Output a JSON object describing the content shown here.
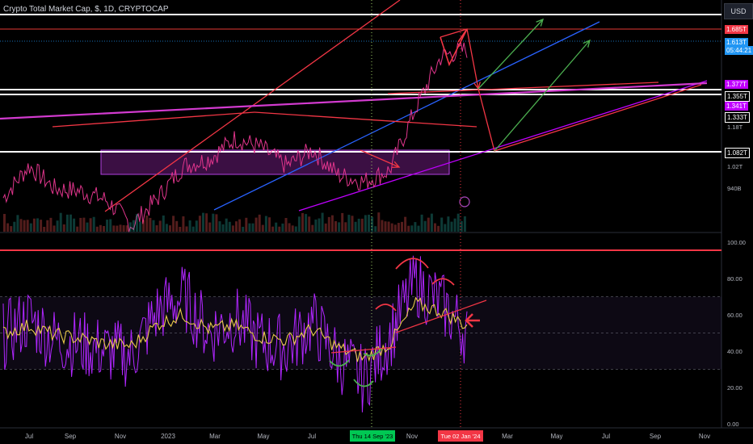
{
  "header": {
    "title": "Crypto Total Market Cap, $, 1D, CRYPTOCAP",
    "currency": "USD"
  },
  "price_axis": {
    "tick_labels": [
      "1.18T",
      "1.02T",
      "940B"
    ],
    "price_tags": [
      {
        "label": "1.685T",
        "color": "#f23645"
      },
      {
        "label": "1.613T",
        "color": "#2196f3"
      },
      {
        "label": "05:44:21",
        "color": "#2196f3"
      },
      {
        "label": "1.377T",
        "color": "#c000ff"
      },
      {
        "label": "1.355T",
        "color": "#000000"
      },
      {
        "label": "1.341T",
        "color": "#c000ff"
      },
      {
        "label": "1.333T",
        "color": "#000000"
      },
      {
        "label": "1.082T",
        "color": "#000000"
      }
    ]
  },
  "time_axis": {
    "labels": [
      "Jul",
      "Sep",
      "Nov",
      "2023",
      "Mar",
      "May",
      "Jul",
      "Sep",
      "Nov",
      "Mar",
      "May",
      "Jul",
      "Sep",
      "Nov"
    ],
    "highlight_left": "Thu 14 Sep '23",
    "highlight_right": "Tue 02 Jan '24"
  },
  "chart_data": [
    {
      "type": "line",
      "title": "Crypto Total Market Cap, $, 1D, CRYPTOCAP",
      "x": [
        "Jul 2022",
        "Aug 2022",
        "Sep 2022",
        "Oct 2022",
        "Nov 2022",
        "Dec 2022",
        "Jan 2023",
        "Feb 2023",
        "Mar 2023",
        "Apr 2023",
        "May 2023",
        "Jun 2023",
        "Jul 2023",
        "Aug 2023",
        "Sep 2023",
        "Oct 2023",
        "Nov 2023",
        "Dec 2023",
        "Jan 2024"
      ],
      "series": [
        {
          "values": [
            0.96,
            1.1,
            1.0,
            0.99,
            0.95,
            0.84,
            0.96,
            1.1,
            1.13,
            1.22,
            1.18,
            1.1,
            1.17,
            1.06,
            1.03,
            1.08,
            1.35,
            1.58,
            1.61
          ]
        }
      ],
      "ylim": [
        0.9,
        1.72
      ],
      "color": "#e0358c"
    },
    {
      "type": "line",
      "x": [
        "Jul 2022",
        "Aug 2022",
        "Sep 2022",
        "Oct 2022",
        "Nov 2022",
        "Dec 2022",
        "Jan 2023",
        "Feb 2023",
        "Mar 2023",
        "Apr 2023",
        "May 2023",
        "Jun 2023",
        "Jul 2023",
        "Aug 2023",
        "Sep 2023",
        "Oct 2023",
        "Nov 2023",
        "Dec 2023",
        "Jan 2024"
      ],
      "series": [
        {
          "values": [
            48,
            58,
            46,
            44,
            40,
            38,
            62,
            70,
            50,
            58,
            45,
            42,
            56,
            36,
            24,
            48,
            78,
            66,
            50
          ]
        },
        {
          "values": [
            50,
            54,
            49,
            47,
            44,
            43,
            55,
            60,
            52,
            54,
            48,
            46,
            52,
            42,
            36,
            44,
            66,
            62,
            54
          ]
        }
      ],
      "ylim": [
        0,
        100
      ],
      "y_tick_labels": [
        "100.00",
        "80.00",
        "60.00",
        "40.00",
        "20.00",
        "0.00"
      ],
      "colors": [
        "#b026ff",
        "#e8c94a"
      ]
    }
  ]
}
